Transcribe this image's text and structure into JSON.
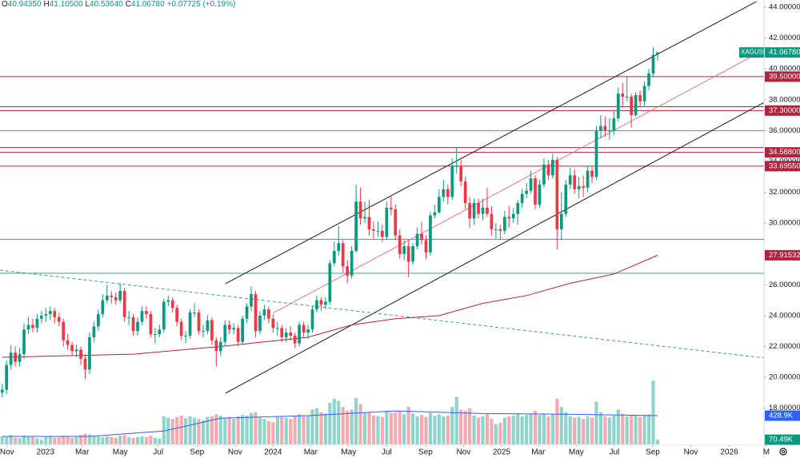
{
  "header": {
    "items": [
      {
        "key": "O",
        "value": "40.94350"
      },
      {
        "key": "H",
        "value": "41.10500"
      },
      {
        "key": "L",
        "value": "40.53640"
      },
      {
        "key": "C",
        "value": "41.06780"
      }
    ],
    "change": "+0.07725 (+0.19%)"
  },
  "chart_data": {
    "type": "candlestick",
    "symbol": "XAGUSD",
    "up_color": "#089981",
    "down_color": "#f23645",
    "xlim": [
      -0.5,
      182.6
    ],
    "ylim": [
      15.13,
      44.47
    ],
    "xticks": [
      {
        "value": 1.1,
        "label": "Nov"
      },
      {
        "value": 9.9,
        "label": "2023"
      },
      {
        "value": 18.3,
        "label": "Mar"
      },
      {
        "value": 27.0,
        "label": "May"
      },
      {
        "value": 35.7,
        "label": "Jul"
      },
      {
        "value": 44.6,
        "label": "Sep"
      },
      {
        "value": 53.3,
        "label": "Nov"
      },
      {
        "value": 62.0,
        "label": "2024"
      },
      {
        "value": 70.6,
        "label": "Mar"
      },
      {
        "value": 79.3,
        "label": "May"
      },
      {
        "value": 88.0,
        "label": "Jul"
      },
      {
        "value": 96.9,
        "label": "Sep"
      },
      {
        "value": 105.6,
        "label": "Nov"
      },
      {
        "value": 114.3,
        "label": "2025"
      },
      {
        "value": 122.7,
        "label": "Mar"
      },
      {
        "value": 131.4,
        "label": "May"
      },
      {
        "value": 140.1,
        "label": "Jul"
      },
      {
        "value": 148.9,
        "label": "Sep"
      },
      {
        "value": 157.6,
        "label": "Nov"
      },
      {
        "value": 166.4,
        "label": "2026"
      },
      {
        "value": 174.9,
        "label": "M"
      }
    ],
    "yticks": [
      {
        "value": 18,
        "label": "18.00000"
      },
      {
        "value": 20,
        "label": "20.00000"
      },
      {
        "value": 22,
        "label": "22.00000"
      },
      {
        "value": 24,
        "label": "24.00000"
      },
      {
        "value": 26,
        "label": "26.00000"
      },
      {
        "value": 28,
        "label": "28.00000"
      },
      {
        "value": 30,
        "label": "30.00000"
      },
      {
        "value": 32,
        "label": "32.00000"
      },
      {
        "value": 34,
        "label": "34.00000"
      },
      {
        "value": 36,
        "label": "36.00000"
      },
      {
        "value": 38,
        "label": "38.00000"
      },
      {
        "value": 40,
        "label": "40.00000"
      },
      {
        "value": 42,
        "label": "42.00000"
      },
      {
        "value": 44,
        "label": "44.00000"
      }
    ],
    "open": [
      19.0,
      19.2,
      20.8,
      21.6,
      21.0,
      21.5,
      23.1,
      23.4,
      23.2,
      23.8,
      24.0,
      24.1,
      24.3,
      23.9,
      23.6,
      22.4,
      22.1,
      21.7,
      21.8,
      21.2,
      20.5,
      22.6,
      23.3,
      24.1,
      25.0,
      25.3,
      25.2,
      25.0,
      25.6,
      23.9,
      23.9,
      23.0,
      23.6,
      24.3,
      24.1,
      22.8,
      22.8,
      23.1,
      24.9,
      25.0,
      24.5,
      23.6,
      22.7,
      22.7,
      24.2,
      24.2,
      23.0,
      23.0,
      23.7,
      22.4,
      21.7,
      22.3,
      23.4,
      23.1,
      23.2,
      22.3,
      23.8,
      24.6,
      25.4,
      23.0,
      24.0,
      24.4,
      23.8,
      23.2,
      23.2,
      22.6,
      22.9,
      22.7,
      22.2,
      23.4,
      22.9,
      23.1,
      24.4,
      25.0,
      24.7,
      24.9,
      27.4,
      28.2,
      28.7,
      27.2,
      26.6,
      28.2,
      31.4,
      30.3,
      30.4,
      29.6,
      29.5,
      29.5,
      29.1,
      31.0,
      30.9,
      29.2,
      28.0,
      28.5,
      27.5,
      28.5,
      29.3,
      28.9,
      28.1,
      30.5,
      30.7,
      31.7,
      32.2,
      31.7,
      33.7,
      33.7,
      32.7,
      31.3,
      30.3,
      31.3,
      30.6,
      31.0,
      30.6,
      29.6,
      29.6,
      29.5,
      30.4,
      30.3,
      30.6,
      31.3,
      31.9,
      32.1,
      32.9,
      31.2,
      32.5,
      33.8,
      33.1,
      34.1,
      29.6,
      30.6,
      32.5,
      33.1,
      32.2,
      32.4,
      32.3,
      33.4,
      33.0,
      36.0,
      36.3,
      36.0,
      36.0,
      36.8,
      38.4,
      38.2,
      38.2,
      37.0,
      38.3,
      37.9,
      38.9,
      39.7,
      40.9435
    ],
    "high": [
      19.6,
      21.1,
      22.1,
      22.0,
      21.9,
      23.5,
      23.9,
      23.8,
      24.1,
      24.3,
      24.5,
      24.6,
      24.5,
      24.2,
      23.8,
      22.8,
      22.3,
      22.1,
      22.0,
      21.4,
      22.9,
      23.6,
      24.4,
      25.4,
      26.0,
      25.6,
      25.5,
      26.1,
      25.8,
      24.3,
      24.1,
      23.9,
      24.6,
      24.6,
      24.3,
      23.2,
      23.4,
      25.1,
      25.3,
      25.2,
      24.7,
      23.8,
      23.0,
      24.4,
      24.8,
      24.4,
      23.4,
      24.0,
      23.9,
      22.6,
      22.6,
      23.7,
      23.7,
      23.5,
      23.4,
      24.0,
      24.8,
      25.9,
      25.6,
      24.3,
      24.7,
      24.6,
      24.1,
      23.6,
      23.4,
      23.2,
      23.3,
      22.9,
      23.6,
      23.6,
      23.4,
      24.6,
      25.3,
      25.2,
      25.2,
      27.6,
      28.8,
      29.8,
      28.9,
      27.6,
      28.5,
      32.5,
      32.3,
      31.4,
      31.5,
      30.1,
      30.1,
      29.9,
      31.4,
      31.8,
      31.2,
      29.6,
      28.9,
      28.9,
      28.7,
      29.7,
      30.1,
      29.2,
      30.7,
      31.2,
      32.2,
      32.8,
      32.5,
      34.2,
      34.9,
      34.1,
      33.0,
      31.7,
      31.6,
      31.6,
      31.6,
      32.3,
      31.1,
      30.0,
      29.9,
      30.8,
      31.1,
      31.0,
      31.5,
      32.2,
      32.6,
      33.4,
      33.1,
      32.8,
      34.2,
      34.1,
      34.5,
      34.3,
      32.0,
      32.8,
      33.6,
      33.5,
      33.0,
      33.1,
      33.7,
      33.7,
      36.3,
      37.0,
      36.9,
      36.8,
      37.3,
      38.8,
      39.1,
      39.5,
      38.4,
      38.5,
      38.6,
      39.2,
      40.0,
      41.4,
      41.105
    ],
    "low": [
      18.7,
      18.9,
      20.5,
      20.7,
      20.7,
      21.2,
      22.8,
      22.9,
      22.9,
      23.5,
      23.6,
      23.7,
      23.5,
      23.3,
      22.0,
      21.8,
      21.4,
      21.3,
      20.8,
      19.9,
      20.2,
      22.3,
      23.0,
      23.9,
      24.8,
      24.8,
      24.7,
      24.8,
      23.6,
      23.4,
      22.7,
      22.7,
      23.4,
      23.8,
      22.6,
      22.2,
      22.6,
      22.9,
      24.6,
      24.2,
      23.3,
      22.4,
      22.2,
      22.5,
      23.9,
      22.8,
      22.6,
      22.8,
      22.1,
      20.7,
      21.4,
      22.0,
      22.8,
      22.8,
      22.0,
      22.1,
      23.5,
      24.3,
      22.6,
      22.8,
      23.7,
      23.5,
      22.9,
      22.7,
      22.3,
      22.3,
      22.4,
      21.9,
      22.0,
      22.6,
      22.5,
      22.9,
      24.2,
      24.3,
      24.4,
      24.7,
      27.2,
      27.9,
      26.8,
      26.1,
      26.4,
      28.1,
      29.9,
      30.0,
      29.2,
      29.0,
      29.1,
      28.8,
      28.9,
      30.5,
      28.9,
      27.7,
      27.6,
      26.5,
      27.3,
      28.3,
      28.6,
      27.7,
      27.9,
      30.3,
      30.6,
      31.4,
      31.2,
      31.5,
      33.2,
      32.4,
      30.9,
      29.7,
      29.9,
      30.3,
      30.2,
      30.4,
      29.2,
      29.0,
      28.9,
      29.3,
      29.7,
      30.0,
      29.9,
      31.0,
      31.6,
      31.9,
      30.9,
      31.0,
      32.3,
      32.8,
      32.9,
      28.3,
      28.9,
      30.4,
      32.2,
      31.9,
      31.6,
      31.7,
      32.0,
      32.6,
      32.8,
      35.5,
      35.6,
      35.4,
      35.7,
      36.6,
      37.5,
      37.9,
      36.2,
      36.9,
      37.5,
      37.6,
      38.6,
      39.5,
      40.5364
    ],
    "close": [
      19.2,
      20.8,
      21.6,
      21.0,
      21.5,
      23.1,
      23.4,
      23.2,
      23.8,
      24.0,
      24.1,
      24.3,
      23.9,
      23.6,
      22.4,
      22.1,
      21.7,
      21.8,
      21.2,
      20.5,
      22.6,
      23.3,
      24.1,
      25.0,
      25.3,
      25.2,
      25.0,
      25.6,
      23.9,
      23.9,
      23.0,
      23.6,
      24.3,
      24.1,
      22.8,
      22.8,
      23.1,
      24.9,
      25.0,
      24.5,
      23.6,
      22.7,
      22.7,
      24.2,
      24.2,
      23.0,
      23.0,
      23.7,
      22.4,
      21.7,
      22.3,
      23.4,
      23.1,
      23.2,
      22.3,
      23.8,
      24.6,
      25.4,
      23.0,
      24.0,
      24.4,
      23.8,
      23.2,
      23.2,
      22.6,
      22.9,
      22.7,
      22.2,
      23.4,
      22.9,
      23.1,
      24.4,
      25.0,
      24.7,
      24.9,
      27.4,
      28.2,
      28.7,
      27.2,
      26.6,
      28.2,
      31.4,
      30.3,
      30.4,
      29.6,
      29.5,
      29.5,
      29.1,
      31.0,
      30.9,
      29.2,
      28.0,
      28.5,
      27.5,
      28.5,
      29.3,
      28.9,
      28.1,
      30.5,
      30.7,
      31.7,
      32.2,
      31.7,
      33.7,
      33.7,
      32.7,
      31.3,
      30.3,
      31.3,
      30.6,
      31.0,
      30.6,
      29.6,
      29.6,
      29.5,
      30.4,
      30.3,
      30.6,
      31.3,
      31.9,
      32.1,
      32.9,
      31.2,
      32.5,
      33.8,
      33.1,
      34.1,
      29.6,
      30.6,
      32.5,
      33.1,
      32.2,
      32.4,
      32.3,
      33.4,
      33.0,
      36.0,
      36.3,
      36.0,
      36.0,
      36.8,
      38.4,
      38.2,
      38.2,
      37.0,
      38.3,
      37.9,
      38.9,
      39.7,
      40.9,
      41.0678
    ],
    "last_price": {
      "value": 41.0678,
      "label": "41.06780"
    },
    "volume": {
      "ylim": [
        0,
        6630
      ],
      "up_color": "#8fd4cb",
      "down_color": "#f7a9b0",
      "values": [
        120,
        110,
        140,
        100,
        90,
        130,
        120,
        110,
        90,
        70,
        110,
        120,
        100,
        110,
        130,
        120,
        100,
        110,
        140,
        160,
        150,
        130,
        120,
        110,
        120,
        110,
        100,
        130,
        140,
        110,
        100,
        110,
        120,
        110,
        130,
        100,
        90,
        420,
        400,
        380,
        410,
        430,
        390,
        420,
        400,
        380,
        360,
        410,
        420,
        450,
        430,
        400,
        410,
        380,
        420,
        440,
        430,
        470,
        480,
        400,
        380,
        350,
        330,
        410,
        420,
        400,
        380,
        430,
        450,
        420,
        430,
        520,
        540,
        480,
        460,
        620,
        680,
        650,
        560,
        500,
        520,
        690,
        600,
        470,
        480,
        430,
        420,
        410,
        500,
        470,
        480,
        500,
        450,
        560,
        460,
        420,
        440,
        410,
        470,
        430,
        450,
        420,
        430,
        560,
        710,
        520,
        500,
        540,
        430,
        400,
        420,
        450,
        380,
        300,
        320,
        400,
        420,
        430,
        460,
        420,
        440,
        450,
        500,
        440,
        460,
        420,
        450,
        680,
        560,
        480,
        420,
        400,
        410,
        380,
        420,
        400,
        640,
        480,
        420,
        400,
        430,
        520,
        460,
        420,
        440,
        430,
        410,
        440,
        450,
        950,
        70.49
      ],
      "last_label": "70.49K",
      "ma": {
        "x": [
          0,
          20,
          37,
          50,
          70,
          90,
          110,
          130,
          150
        ],
        "values": [
          120,
          120,
          200,
          390,
          430,
          500,
          460,
          450,
          428.9
        ],
        "label": "428.9K",
        "color": "#2962ff"
      }
    },
    "ma": {
      "x": [
        0,
        30,
        50,
        70,
        80,
        90,
        100,
        110,
        120,
        130,
        140,
        150
      ],
      "values": [
        21.3,
        21.5,
        22.0,
        22.6,
        23.4,
        23.8,
        24.0,
        24.8,
        25.3,
        26.1,
        26.7,
        27.91532
      ],
      "label": "27.91532",
      "color": "#b2223a"
    },
    "trendlines": [
      {
        "x": [
          51.1,
          172.6
        ],
        "values": [
          26.07,
          44.36
        ],
        "color": "#131722",
        "dashed": false
      },
      {
        "x": [
          51.1,
          174.4
        ],
        "values": [
          18.97,
          37.83
        ],
        "color": "#131722",
        "dashed": false
      },
      {
        "x": [
          62.0,
          174.4
        ],
        "values": [
          24.17,
          41.23
        ],
        "color": "#e07a7a",
        "dashed": false
      },
      {
        "x": [
          -0.5,
          182.6
        ],
        "values": [
          26.95,
          20.99
        ],
        "color": "#3f9c94",
        "dashed": true
      }
    ],
    "price_lines": [
      {
        "value": 39.5,
        "color": "#b2223a",
        "label": "39.50000"
      },
      {
        "value": 37.55,
        "color": "#b2223a"
      },
      {
        "value": 37.3,
        "color": "#b2223a",
        "label": "37.30000"
      },
      {
        "value": 36.0,
        "color": "#3f9c94"
      },
      {
        "value": 34.9,
        "color": "#b2223a"
      },
      {
        "value": 34.588,
        "color": "#b2223a",
        "label": "34.58800"
      },
      {
        "value": 33.6955,
        "color": "#b2223a",
        "label": "33.69550"
      },
      {
        "value": 28.95,
        "color": "#3f9c94"
      },
      {
        "value": 26.75,
        "color": "#3f9c94"
      }
    ]
  }
}
